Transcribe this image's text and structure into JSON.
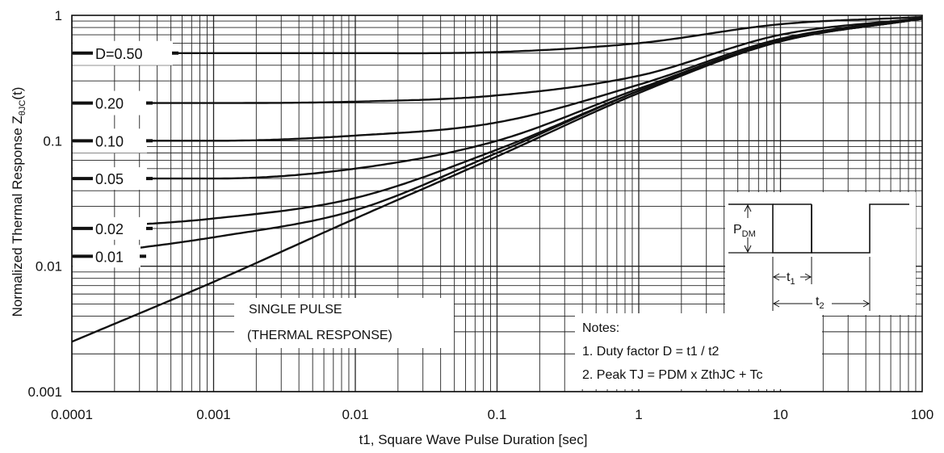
{
  "chart_data": {
    "type": "line",
    "title": "",
    "xlabel": "t1, Square Wave Pulse Duration [sec]",
    "ylabel": {
      "main": "Normalized Thermal Response Z",
      "sub": "θJC",
      "tail": "(t)"
    },
    "x_scale": "log",
    "y_scale": "log",
    "xlim": [
      0.0001,
      100
    ],
    "ylim": [
      0.001,
      1
    ],
    "grid": true,
    "x_ticks": [
      0.0001,
      0.001,
      0.01,
      0.1,
      1,
      10,
      100
    ],
    "x_tick_labels": [
      "0.0001",
      "0.001",
      "0.01",
      "0.1",
      "1",
      "10",
      "100"
    ],
    "y_ticks": [
      0.001,
      0.01,
      0.1,
      1
    ],
    "y_tick_labels": [
      "0.001",
      "0.01",
      "0.1",
      "1"
    ],
    "series": [
      {
        "name": "D=0.50",
        "label": "D=0.50",
        "x": [
          0.0001,
          0.001,
          0.01,
          0.1,
          1,
          10,
          100
        ],
        "y": [
          0.5,
          0.5,
          0.5,
          0.51,
          0.6,
          0.85,
          0.97
        ]
      },
      {
        "name": "0.20",
        "label": "0.20",
        "x": [
          0.0001,
          0.001,
          0.01,
          0.1,
          1,
          10,
          100
        ],
        "y": [
          0.2,
          0.2,
          0.205,
          0.23,
          0.33,
          0.7,
          0.95
        ]
      },
      {
        "name": "0.10",
        "label": "0.10",
        "x": [
          0.0001,
          0.001,
          0.01,
          0.1,
          1,
          10,
          100
        ],
        "y": [
          0.1,
          0.1,
          0.11,
          0.14,
          0.28,
          0.65,
          0.95
        ]
      },
      {
        "name": "0.05",
        "label": "0.05",
        "x": [
          0.0001,
          0.001,
          0.01,
          0.1,
          1,
          10,
          100
        ],
        "y": [
          0.05,
          0.05,
          0.06,
          0.1,
          0.26,
          0.63,
          0.94
        ]
      },
      {
        "name": "0.02",
        "label": "0.02",
        "x": [
          0.0001,
          0.001,
          0.01,
          0.1,
          1,
          10,
          100
        ],
        "y": [
          0.02,
          0.024,
          0.035,
          0.085,
          0.25,
          0.62,
          0.94
        ]
      },
      {
        "name": "0.01",
        "label": "0.01",
        "x": [
          0.0001,
          0.001,
          0.01,
          0.1,
          1,
          10,
          100
        ],
        "y": [
          0.012,
          0.017,
          0.028,
          0.08,
          0.25,
          0.62,
          0.94
        ]
      },
      {
        "name": "SINGLE PULSE",
        "label": "SINGLE PULSE",
        "x": [
          0.0001,
          0.001,
          0.01,
          0.1,
          1,
          10,
          100
        ],
        "y": [
          0.0025,
          0.0075,
          0.024,
          0.075,
          0.24,
          0.62,
          0.94
        ]
      }
    ],
    "annotations": {
      "single_pulse": [
        "SINGLE PULSE",
        "(THERMAL RESPONSE)"
      ],
      "notes": [
        "Notes:",
        "1. Duty factor D = t1 / t2",
        "2. Peak TJ = PDM x ZthJC + Tc"
      ],
      "pulse_diagram": {
        "p_main": "P",
        "p_sub": "DM",
        "t1_main": "t",
        "t1_sub": "1",
        "t2_main": "t",
        "t2_sub": "2"
      }
    }
  }
}
